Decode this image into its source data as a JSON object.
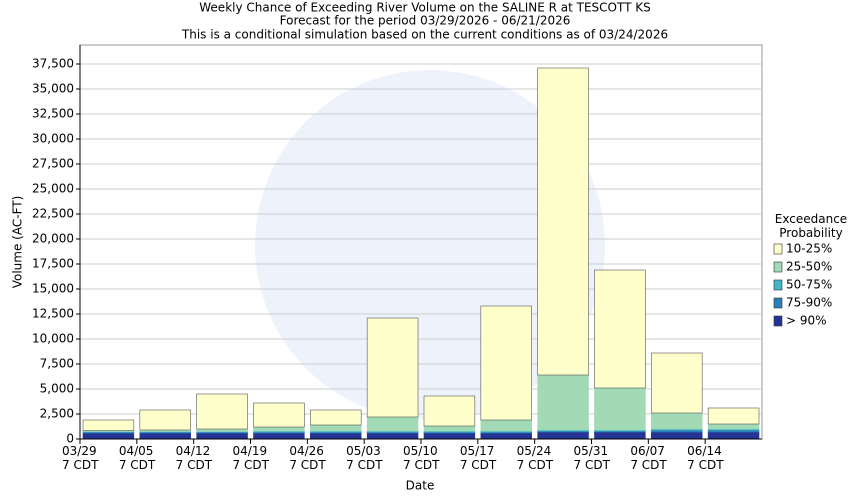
{
  "chart_data": {
    "type": "stacked-bar",
    "title": "Weekly Chance of Exceeding River Volume on the SALINE R at TESCOTT KS",
    "subtitle": "Forecast for the period 03/29/2026 - 06/21/2026",
    "note": "This is a conditional simulation based on the current conditions as of 03/24/2026",
    "x_label": "Date",
    "y_label": "Volume (AC-FT)",
    "legend_title": "Exceedance Probability",
    "categories": [
      "03/29 7 CDT",
      "04/05 7 CDT",
      "04/12 7 CDT",
      "04/19 7 CDT",
      "04/26 7 CDT",
      "05/03 7 CDT",
      "05/10 7 CDT",
      "05/17 7 CDT",
      "05/24 7 CDT",
      "05/31 7 CDT",
      "06/07 7 CDT",
      "06/14 7 CDT"
    ],
    "series": [
      {
        "name": "> 90%",
        "color": "#253494",
        "values": [
          600,
          600,
          600,
          600,
          600,
          600,
          600,
          600,
          700,
          700,
          700,
          700
        ]
      },
      {
        "name": "75-90%",
        "color": "#2c7fb8",
        "values": [
          100,
          100,
          100,
          100,
          100,
          100,
          100,
          100,
          100,
          100,
          200,
          200
        ]
      },
      {
        "name": "50-75%",
        "color": "#41b6c4",
        "values": [
          50,
          50,
          50,
          100,
          100,
          100,
          100,
          100,
          100,
          100,
          100,
          100
        ]
      },
      {
        "name": "25-50%",
        "color": "#a1dab4",
        "values": [
          100,
          150,
          250,
          400,
          600,
          1400,
          500,
          1100,
          5500,
          4200,
          1600,
          500
        ]
      },
      {
        "name": "10-25%",
        "color": "#ffffcc",
        "values": [
          1050,
          2000,
          3500,
          2400,
          1500,
          9900,
          3000,
          11400,
          30700,
          11800,
          6000,
          1600
        ]
      }
    ],
    "ylim": [
      0,
      39400
    ],
    "yticks": [
      0,
      {
        "value": 2500,
        "label": "2,500"
      },
      {
        "value": 5000,
        "label": "5,000"
      },
      {
        "value": 7500,
        "label": "7,500"
      },
      {
        "value": 10000,
        "label": "10,000"
      },
      {
        "value": 12500,
        "label": "12,500"
      },
      {
        "value": 15000,
        "label": "15,000"
      },
      {
        "value": 17500,
        "label": "17,500"
      },
      {
        "value": 20000,
        "label": "20,000"
      },
      {
        "value": 22500,
        "label": "22,500"
      },
      {
        "value": 25000,
        "label": "25,000"
      },
      {
        "value": 27500,
        "label": "27,500"
      },
      {
        "value": 30000,
        "label": "30,000"
      },
      {
        "value": 32500,
        "label": "32,500"
      },
      {
        "value": 35000,
        "label": "35,000"
      },
      {
        "value": 37500,
        "label": "37,500"
      }
    ],
    "grid": true
  }
}
